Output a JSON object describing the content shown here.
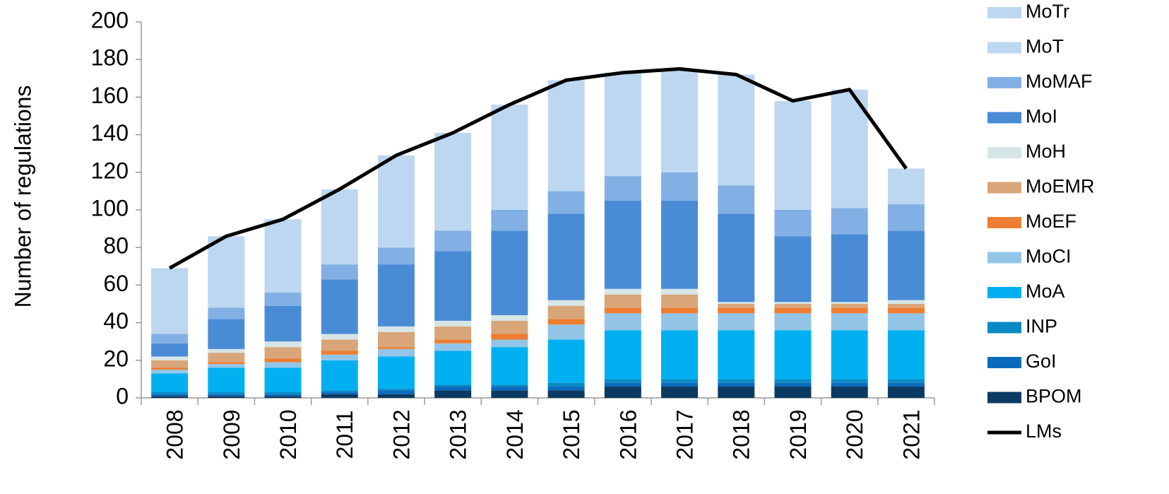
{
  "chart_data": {
    "type": "bar",
    "stacked": true,
    "y_label": "Number of regulations",
    "categories": [
      "2008",
      "2009",
      "2010",
      "2011",
      "2012",
      "2013",
      "2014",
      "2015",
      "2016",
      "2017",
      "2018",
      "2019",
      "2020",
      "2021"
    ],
    "ylim": [
      0,
      200
    ],
    "yticks": [
      0,
      20,
      40,
      60,
      80,
      100,
      120,
      140,
      160,
      180,
      200
    ],
    "grid": false,
    "legend": "right",
    "series": [
      {
        "name": "BPOM",
        "color": "#0b3a62",
        "values": [
          1,
          1,
          1,
          2,
          2,
          4,
          4,
          4,
          6,
          6,
          6,
          6,
          6,
          6
        ]
      },
      {
        "name": "GoI",
        "color": "#0a6bbd",
        "values": [
          1,
          1,
          1,
          1,
          2,
          2,
          2,
          2,
          2,
          2,
          2,
          2,
          2,
          2
        ]
      },
      {
        "name": "INP",
        "color": "#0a8ac4",
        "values": [
          1,
          1,
          1,
          1,
          1,
          1,
          1,
          2,
          2,
          2,
          2,
          2,
          2,
          2
        ]
      },
      {
        "name": "MoA",
        "color": "#00b0f0",
        "values": [
          10,
          13,
          13,
          16,
          17,
          18,
          20,
          23,
          26,
          26,
          26,
          26,
          26,
          26
        ]
      },
      {
        "name": "MoCI",
        "color": "#92c5e8",
        "values": [
          2,
          2,
          3,
          3,
          4,
          4,
          4,
          8,
          9,
          9,
          9,
          9,
          9,
          9
        ]
      },
      {
        "name": "MoEF",
        "color": "#ed7d31",
        "values": [
          1,
          1,
          2,
          2,
          1,
          2,
          3,
          3,
          3,
          3,
          3,
          3,
          3,
          3
        ]
      },
      {
        "name": "MoEMR",
        "color": "#d9a679",
        "values": [
          4,
          5,
          6,
          6,
          8,
          7,
          7,
          7,
          7,
          7,
          2,
          2,
          2,
          2
        ]
      },
      {
        "name": "MoH",
        "color": "#d6e6e6",
        "values": [
          2,
          2,
          3,
          3,
          3,
          3,
          3,
          3,
          3,
          3,
          1,
          1,
          1,
          2
        ]
      },
      {
        "name": "MoI",
        "color": "#4a8bd6",
        "values": [
          7,
          16,
          19,
          29,
          33,
          37,
          45,
          46,
          47,
          47,
          47,
          35,
          36,
          37
        ]
      },
      {
        "name": "MoMAF",
        "color": "#82b0e4",
        "values": [
          5,
          6,
          7,
          8,
          9,
          11,
          11,
          12,
          13,
          15,
          15,
          14,
          14,
          14
        ]
      },
      {
        "name": "MoT",
        "color": "#bdd7f0",
        "values": [
          35,
          38,
          39,
          40,
          49,
          52,
          56,
          59,
          55,
          55,
          59,
          58,
          63,
          19
        ]
      },
      {
        "name": "MoTr",
        "color": "#bdd7f0",
        "values": [
          0,
          0,
          0,
          0,
          0,
          0,
          0,
          0,
          0,
          0,
          0,
          0,
          0,
          0
        ]
      }
    ],
    "line": {
      "name": "LMs",
      "color": "#000000",
      "values": [
        69,
        86,
        95,
        111,
        129,
        141,
        156,
        169,
        173,
        175,
        172,
        158,
        164,
        122
      ]
    }
  }
}
